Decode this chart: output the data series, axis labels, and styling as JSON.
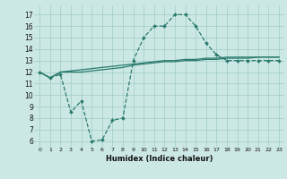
{
  "xlabel": "Humidex (Indice chaleur)",
  "x_values": [
    0,
    1,
    2,
    3,
    4,
    5,
    6,
    7,
    8,
    9,
    10,
    11,
    12,
    13,
    14,
    15,
    16,
    17,
    18,
    19,
    20,
    21,
    22,
    23
  ],
  "line_main_y": [
    12.0,
    11.5,
    11.8,
    8.5,
    9.5,
    6.0,
    6.1,
    7.8,
    8.0,
    13.0,
    15.0,
    16.0,
    16.0,
    17.0,
    17.0,
    16.0,
    14.5,
    13.5,
    13.0,
    13.0,
    13.0,
    13.0,
    13.0,
    13.0
  ],
  "line_upper_y": [
    12.0,
    11.5,
    12.0,
    12.1,
    12.2,
    12.3,
    12.4,
    12.5,
    12.6,
    12.7,
    12.8,
    12.9,
    13.0,
    13.0,
    13.1,
    13.1,
    13.2,
    13.2,
    13.3,
    13.3,
    13.3,
    13.3,
    13.3,
    13.3
  ],
  "line_lower_y": [
    12.0,
    11.5,
    12.0,
    12.0,
    12.0,
    12.1,
    12.2,
    12.3,
    12.4,
    12.6,
    12.7,
    12.8,
    12.9,
    12.9,
    13.0,
    13.0,
    13.1,
    13.1,
    13.2,
    13.2,
    13.2,
    13.3,
    13.3,
    13.3
  ],
  "line_color": "#2a7a6e",
  "bg_color": "#cce8e4",
  "grid_color": "#9fccc7",
  "ylim": [
    5.5,
    17.8
  ],
  "yticks": [
    6,
    7,
    8,
    9,
    10,
    11,
    12,
    13,
    14,
    15,
    16,
    17
  ],
  "xticks": [
    0,
    1,
    2,
    3,
    4,
    5,
    6,
    7,
    8,
    9,
    10,
    11,
    12,
    13,
    14,
    15,
    16,
    17,
    18,
    19,
    20,
    21,
    22,
    23
  ]
}
